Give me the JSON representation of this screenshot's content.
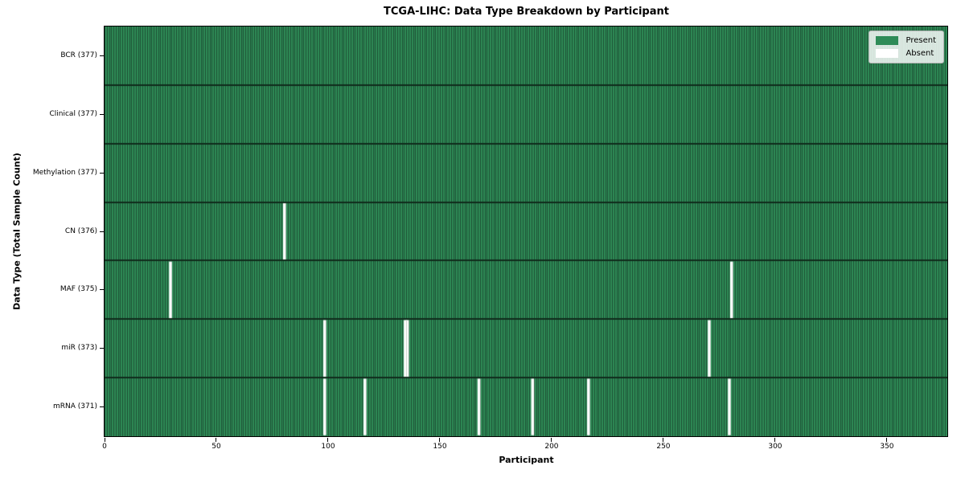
{
  "chart_data": {
    "type": "heatmap",
    "title": "TCGA-LIHC: Data Type Breakdown by Participant",
    "xlabel": "Participant",
    "ylabel": "Data Type (Total Sample Count)",
    "n_participants": 377,
    "x_ticks": [
      0,
      50,
      100,
      150,
      200,
      250,
      300,
      350
    ],
    "xlim": [
      0,
      377
    ],
    "grid": false,
    "rows": [
      {
        "label": "BCR (377)",
        "name": "BCR",
        "total": 377,
        "absent_participants": []
      },
      {
        "label": "Clinical (377)",
        "name": "Clinical",
        "total": 377,
        "absent_participants": []
      },
      {
        "label": "Methylation (377)",
        "name": "Methylation",
        "total": 377,
        "absent_participants": []
      },
      {
        "label": "CN (376)",
        "name": "CN",
        "total": 376,
        "absent_participants": [
          80
        ]
      },
      {
        "label": "MAF (375)",
        "name": "MAF",
        "total": 375,
        "absent_participants": [
          29,
          280
        ]
      },
      {
        "label": "miR (373)",
        "name": "miR",
        "total": 373,
        "absent_participants": [
          98,
          134,
          135,
          270
        ]
      },
      {
        "label": "mRNA (371)",
        "name": "mRNA",
        "total": 371,
        "absent_participants": [
          98,
          116,
          167,
          191,
          216,
          279
        ]
      }
    ],
    "legend": {
      "position": "upper right",
      "items": [
        {
          "label": "Present",
          "color": "#2e8b57"
        },
        {
          "label": "Absent",
          "color": "#ffffff"
        }
      ]
    },
    "colors": {
      "present": "#2e8b57",
      "absent": "#ffffff",
      "cell_edge": "#1d4f33",
      "row_divider": "#102b1b",
      "absent_divider": "#c9d2c9",
      "plot_border": "#000000"
    }
  }
}
